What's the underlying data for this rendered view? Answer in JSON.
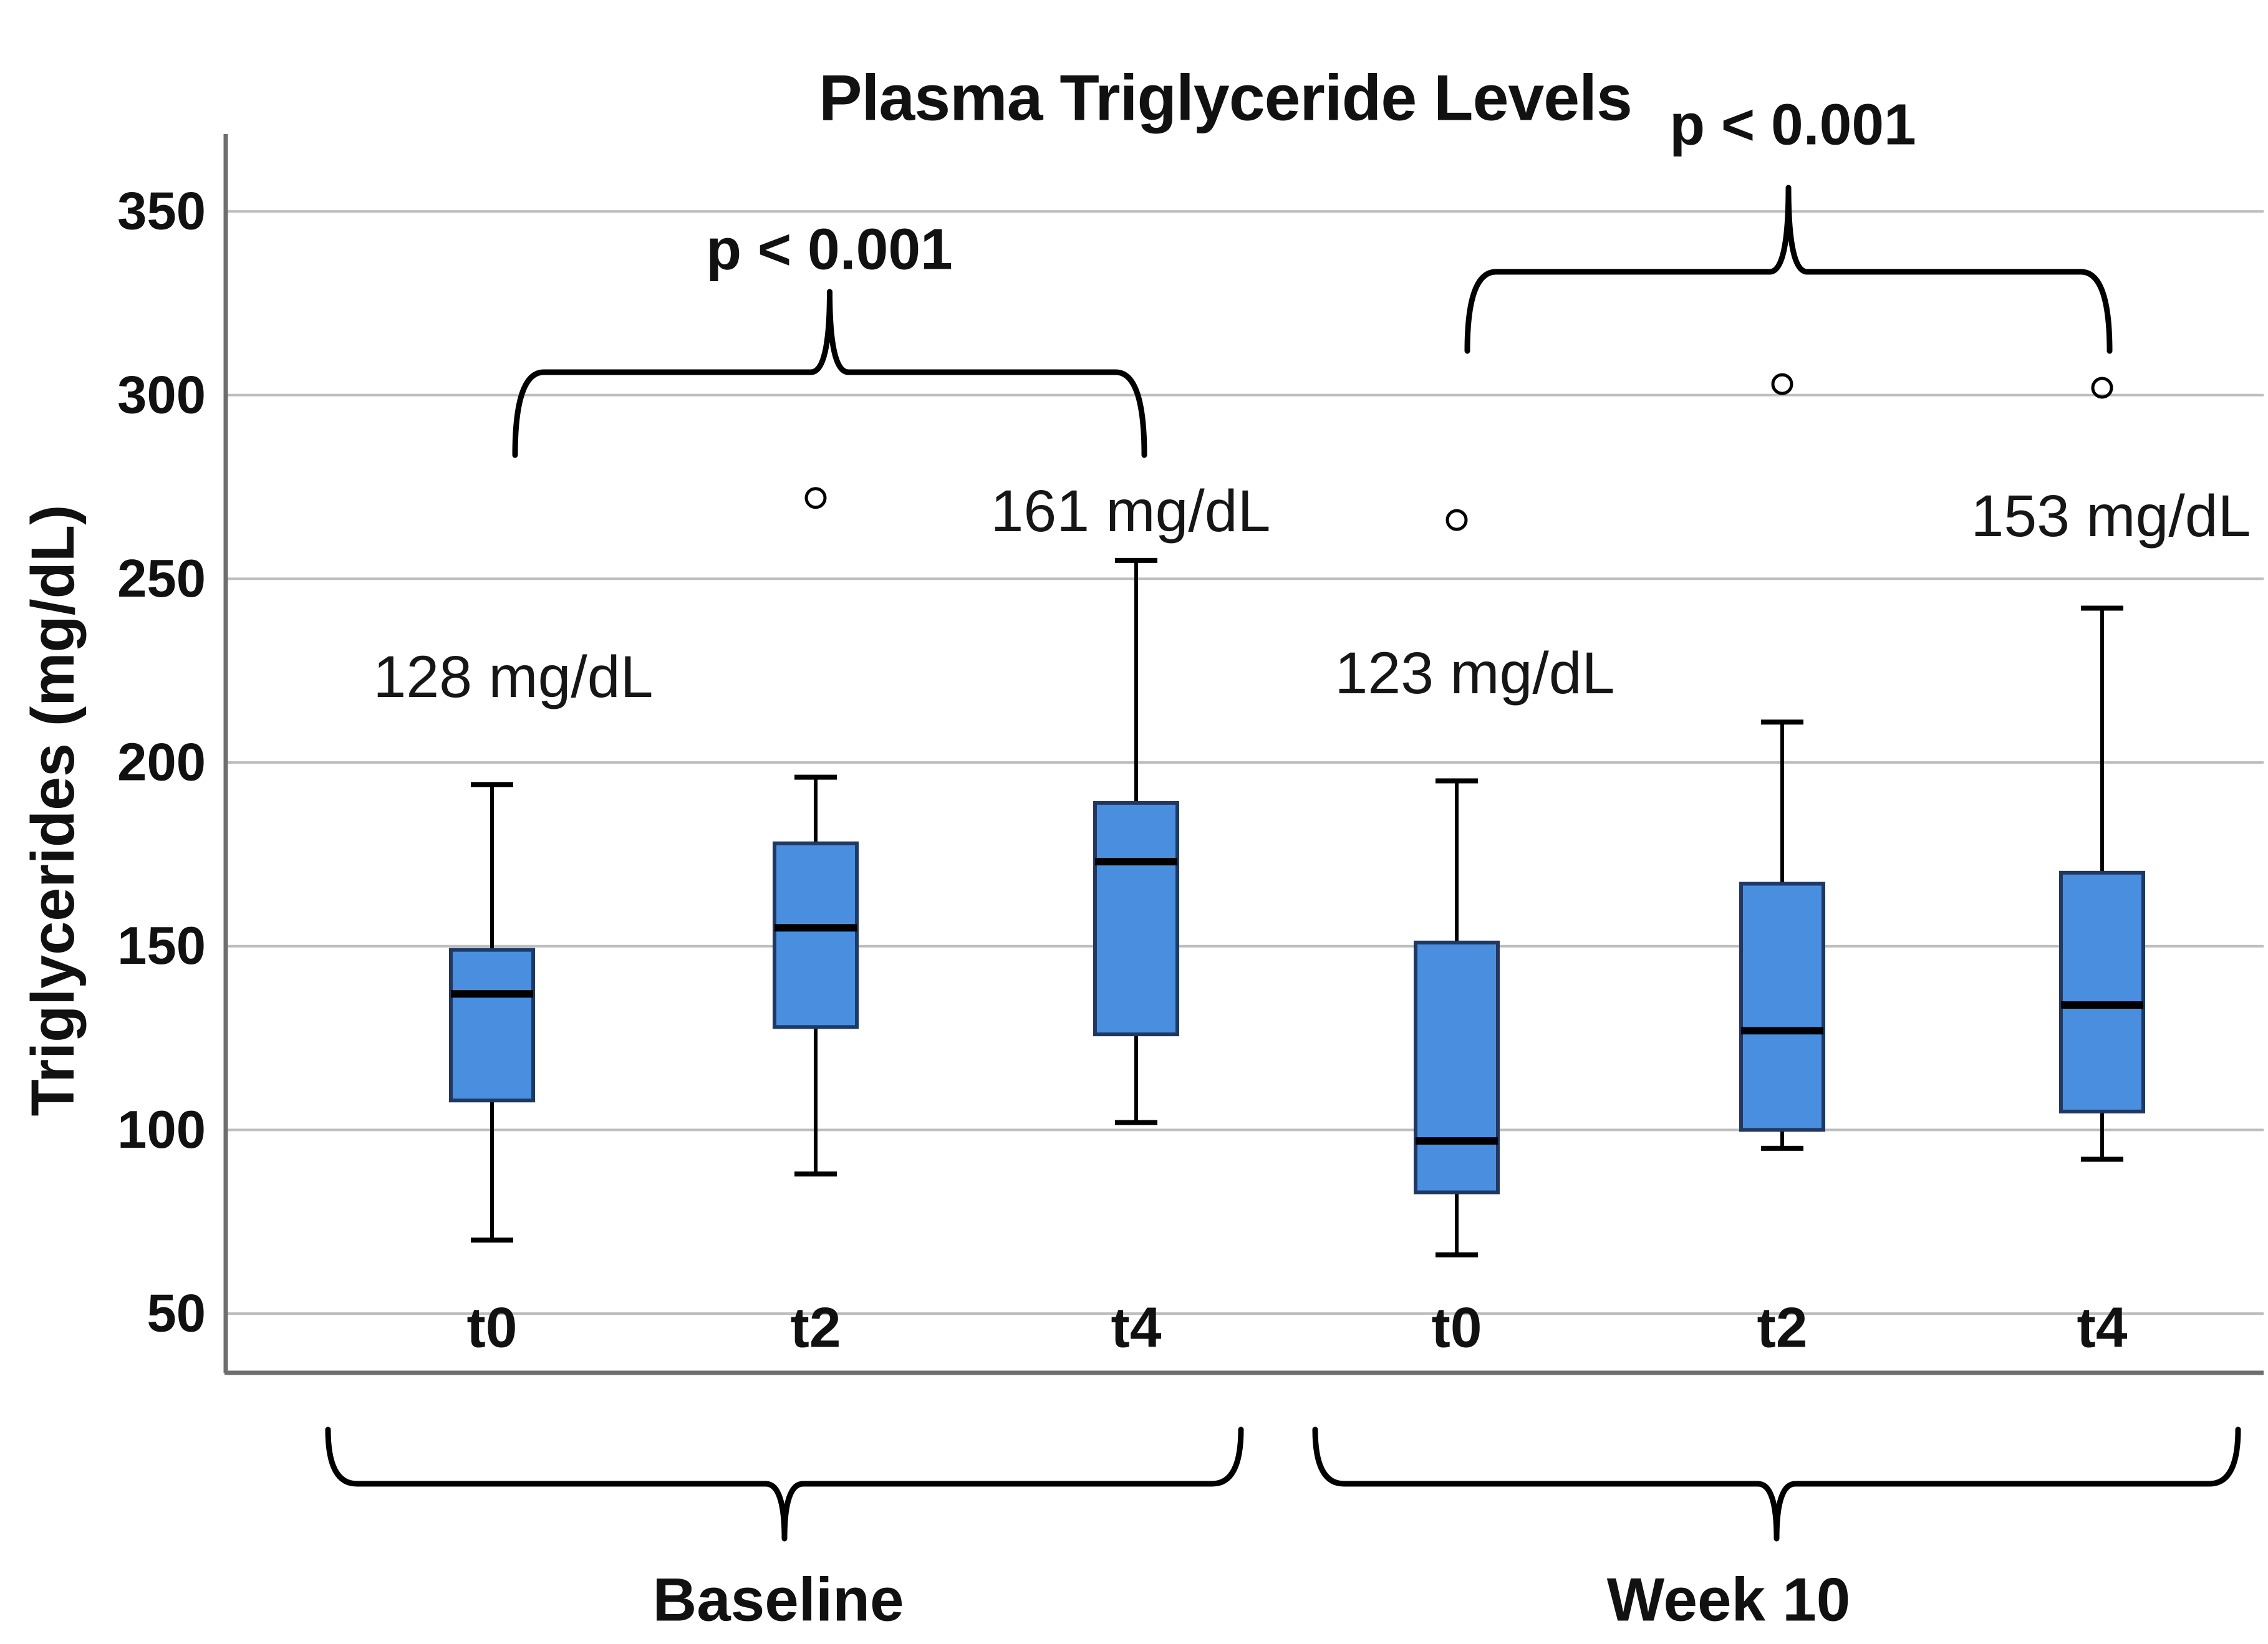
{
  "chart_data": {
    "type": "boxplot",
    "title": "Plasma Triglyceride Levels",
    "ylabel": "Triglycerides (mg/dL)",
    "yticks": [
      350,
      300,
      250,
      200,
      150,
      100,
      50
    ],
    "ylim": [
      40,
      375
    ],
    "grid": "horizontal gridlines every 50 mg/dL",
    "legend": "none",
    "groups": [
      {
        "label": "Baseline",
        "categories": [
          "t0",
          "t2",
          "t4"
        ]
      },
      {
        "label": "Week 10",
        "categories": [
          "t0",
          "t2",
          "t4"
        ]
      }
    ],
    "series": [
      {
        "group": "Baseline",
        "category": "t0",
        "min": 70,
        "q1": 108,
        "median": 137,
        "q3": 149,
        "max": 194,
        "outliers": []
      },
      {
        "group": "Baseline",
        "category": "t2",
        "min": 88,
        "q1": 128,
        "median": 155,
        "q3": 178,
        "max": 196,
        "outliers": [
          272
        ]
      },
      {
        "group": "Baseline",
        "category": "t4",
        "min": 102,
        "q1": 126,
        "median": 173,
        "q3": 189,
        "max": 255,
        "outliers": []
      },
      {
        "group": "Week 10",
        "category": "t0",
        "min": 66,
        "q1": 83,
        "median": 97,
        "q3": 151,
        "max": 195,
        "outliers": [
          266
        ]
      },
      {
        "group": "Week 10",
        "category": "t2",
        "min": 95,
        "q1": 100,
        "median": 127,
        "q3": 167,
        "max": 211,
        "outliers": [
          303
        ]
      },
      {
        "group": "Week 10",
        "category": "t4",
        "min": 92,
        "q1": 105,
        "median": 134,
        "q3": 170,
        "max": 242,
        "outliers": [
          302
        ]
      }
    ],
    "mean_labels": [
      {
        "text": "128 mg/dL",
        "series": 0
      },
      {
        "text": "161 mg/dL",
        "series": 2
      },
      {
        "text": "123 mg/dL",
        "series": 3
      },
      {
        "text": "153 mg/dL",
        "series": 5
      }
    ],
    "significance": [
      {
        "label": "p < 0.001",
        "group": "Baseline",
        "from": "t0",
        "to": "t4"
      },
      {
        "label": "p < 0.001",
        "group": "Week 10",
        "from": "t0",
        "to": "t4"
      }
    ],
    "group_brackets": [
      {
        "label": "Baseline",
        "spans": [
          "t0",
          "t2",
          "t4"
        ]
      },
      {
        "label": "Week 10",
        "spans": [
          "t0",
          "t2",
          "t4"
        ]
      }
    ],
    "colors": {
      "box_fill": "#4A8FDF",
      "box_border": "#1F3864",
      "median": "#000000",
      "whisker": "#000000",
      "outlier": "#000000",
      "gridline": "#BEBEBE",
      "axis": "#6E6E6E",
      "text": "#111111",
      "background": "#FFFFFF"
    }
  }
}
